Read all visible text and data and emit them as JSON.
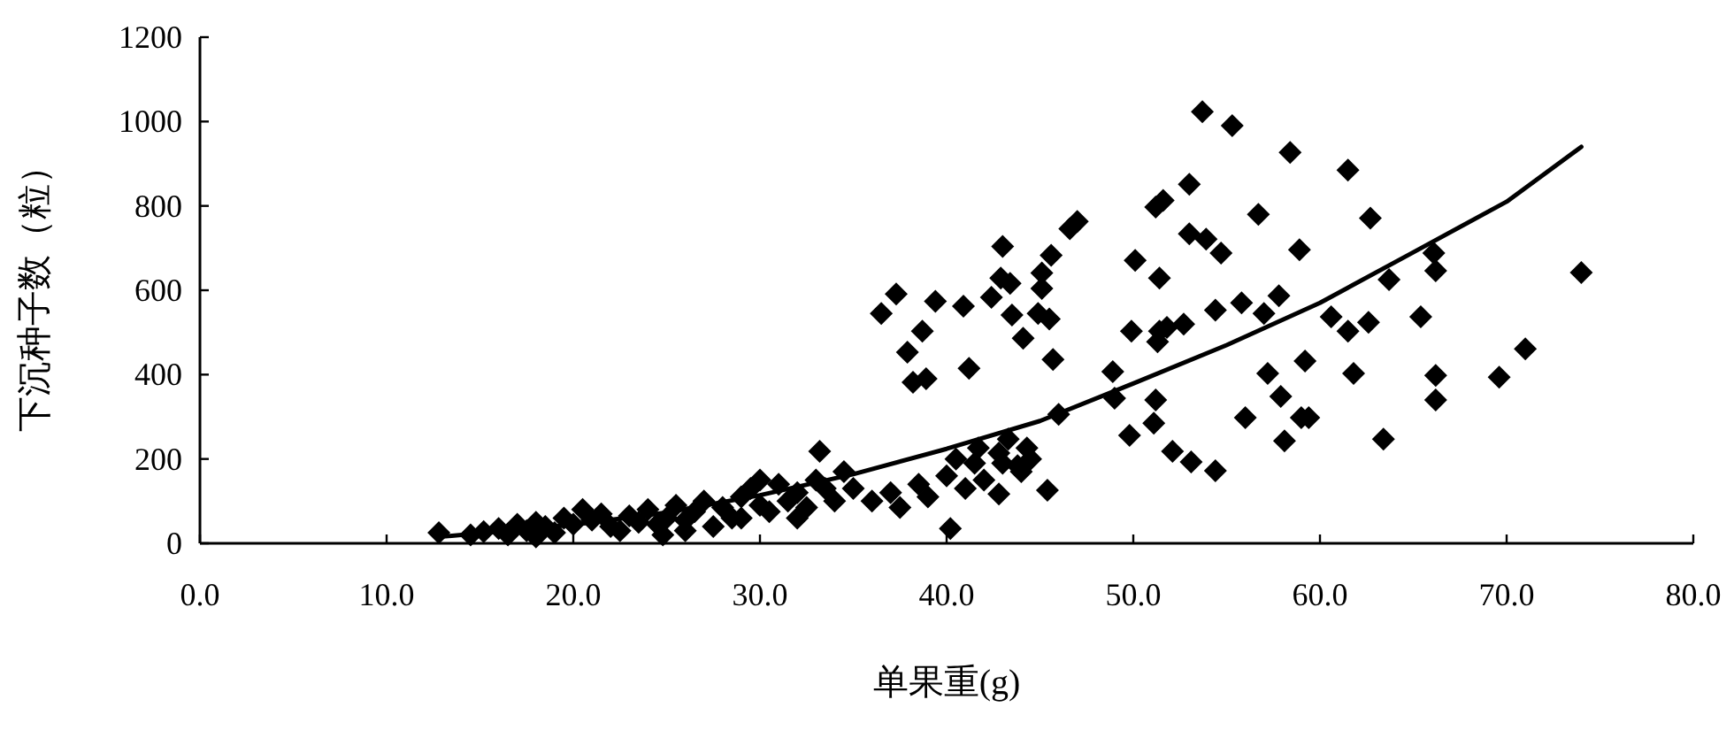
{
  "chart_data": {
    "type": "scatter",
    "xlabel": "单果重(g)",
    "ylabel": "下沉种子数（粒）",
    "xlim": [
      0,
      80
    ],
    "ylim": [
      0,
      1200
    ],
    "xticks": [
      {
        "value": 0,
        "label": "0.0"
      },
      {
        "value": 10,
        "label": "10.0"
      },
      {
        "value": 20,
        "label": "20.0"
      },
      {
        "value": 30,
        "label": "30.0"
      },
      {
        "value": 40,
        "label": "40.0"
      },
      {
        "value": 50,
        "label": "50.0"
      },
      {
        "value": 60,
        "label": "60.0"
      },
      {
        "value": 70,
        "label": "70.0"
      },
      {
        "value": 80,
        "label": "80.0"
      }
    ],
    "yticks": [
      0,
      200,
      400,
      600,
      800,
      1000,
      1200
    ],
    "series": [
      {
        "marker": "diamond",
        "color": "#000000",
        "x": [
          12.8,
          14.5,
          15.2,
          16,
          16.5,
          17,
          17.5,
          18,
          18.5,
          19,
          19.5,
          20,
          21,
          21.5,
          22,
          22.5,
          23,
          23.5,
          24,
          24.5,
          25,
          25.5,
          26,
          26.5,
          27,
          27.5,
          28,
          28.5,
          29,
          29.5,
          30,
          30.5,
          31,
          31.5,
          32,
          32.5,
          33,
          33.5,
          34,
          34.5,
          35,
          33.2,
          36,
          37,
          37.5,
          38.5,
          39,
          40,
          40.5,
          41,
          41.5,
          42,
          43,
          44,
          44.5,
          40.2,
          20.5,
          18,
          26,
          29,
          30,
          24.8,
          32,
          41.7,
          42.8,
          43.3,
          43.8,
          44.3,
          42.8,
          45.4,
          46,
          36.5,
          37.3,
          39.4,
          40.9,
          38.7,
          37.9,
          38.2,
          38.9,
          41.2,
          43.0,
          42.4,
          42.9,
          43.4,
          43.5,
          44.1,
          45.1,
          45.6,
          45.1,
          44.9,
          45.5,
          45.7,
          47.0,
          46.6,
          50.1,
          51.4,
          49.9,
          51.4,
          51.8,
          52.7,
          51.2,
          51.6,
          53.0,
          53.0,
          48.9,
          49.0,
          51.2,
          51.1,
          49.8,
          52.1,
          53.1,
          53.7,
          55.3,
          58.4,
          61.5,
          56.7,
          62.7,
          53.9,
          54.7,
          58.9,
          66.1,
          66.2,
          63.7,
          74.0,
          57.8,
          55.8,
          54.4,
          57.0,
          60.6,
          61.5,
          62.6,
          65.4,
          51.3,
          59.2,
          57.2,
          61.8,
          66.2,
          69.6,
          71.0,
          66.2,
          57.9,
          56.0,
          59.0,
          59.4,
          58.1,
          63.4,
          54.4
        ],
        "values": [
          25,
          20,
          28,
          35,
          20,
          45,
          30,
          50,
          40,
          25,
          60,
          45,
          55,
          70,
          40,
          30,
          65,
          50,
          80,
          45,
          60,
          90,
          55,
          75,
          100,
          40,
          85,
          60,
          110,
          130,
          90,
          75,
          140,
          100,
          120,
          85,
          150,
          130,
          100,
          170,
          130,
          218,
          100,
          120,
          85,
          140,
          110,
          160,
          200,
          130,
          190,
          150,
          190,
          170,
          200,
          35,
          80,
          15,
          30,
          60,
          150,
          20,
          60,
          226,
          214,
          247,
          184,
          226,
          117,
          126,
          306,
          545,
          591,
          574,
          562,
          503,
          453,
          382,
          390,
          415,
          704,
          583,
          629,
          616,
          541,
          486,
          641,
          683,
          604,
          545,
          532,
          436,
          763,
          746,
          671,
          629,
          503,
          503,
          512,
          520,
          797,
          813,
          851,
          734,
          407,
          344,
          340,
          285,
          256,
          218,
          193,
          1023,
          990,
          927,
          885,
          780,
          771,
          721,
          688,
          696,
          688,
          646,
          625,
          642,
          587,
          570,
          553,
          545,
          537,
          503,
          524,
          537,
          478,
          432,
          403,
          403,
          398,
          394,
          461,
          340,
          348,
          298,
          298,
          298,
          243,
          247,
          172
        ],
        "name": null
      },
      {
        "type": "line",
        "marker": "none",
        "color": "#000000",
        "line_style": "solid",
        "x": [
          13,
          20,
          25,
          30,
          35,
          40,
          45,
          50,
          55,
          60,
          65,
          70,
          74
        ],
        "values": [
          16,
          44,
          73,
          114,
          164,
          224,
          290,
          379,
          470,
          570,
          690,
          810,
          940
        ]
      }
    ]
  }
}
